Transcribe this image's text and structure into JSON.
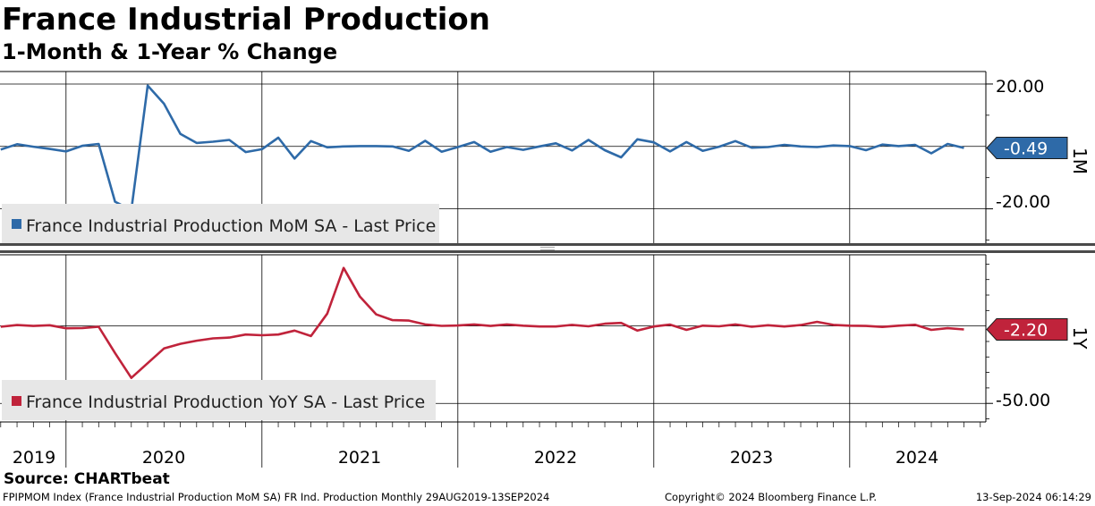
{
  "header": {
    "title": "France Industrial Production",
    "subtitle": "1-Month & 1-Year % Change"
  },
  "source": "Source: CHARTbeat",
  "footer": {
    "left": "FPIPMOM Index (France Industrial Production MoM SA) FR Ind. Production  Monthly 29AUG2019-13SEP2024",
    "center": "Copyright© 2024 Bloomberg Finance L.P.",
    "right": "13-Sep-2024 06:14:29"
  },
  "chart_data": [
    {
      "type": "line",
      "panel_label": "1M",
      "legend": "France Industrial Production MoM SA - Last Price",
      "legend_placement": "bottom-left",
      "color": "#2e6aa8",
      "last_value_label": "-0.49",
      "last_value": -0.49,
      "y_ticks": [
        20.0,
        -20.0
      ],
      "y_tick_labels": [
        "20.00",
        "-20.00"
      ],
      "ylim": [
        -31,
        24
      ],
      "grid": true,
      "x_start": "2019-09",
      "values": [
        -1.0,
        0.7,
        -0.1,
        -0.8,
        -1.6,
        0.2,
        0.8,
        -17.7,
        -20.4,
        19.5,
        13.7,
        4.0,
        1.1,
        1.5,
        2.1,
        -1.8,
        -0.9,
        2.8,
        -3.9,
        1.7,
        -0.3,
        0.0,
        0.1,
        0.1,
        0.0,
        -1.4,
        1.8,
        -1.7,
        -0.2,
        1.4,
        -1.7,
        -0.2,
        -1.1,
        0.0,
        1.0,
        -1.3,
        2.1,
        -1.2,
        -3.5,
        2.3,
        1.3,
        -1.6,
        1.4,
        -1.4,
        -0.1,
        1.7,
        -0.4,
        -0.2,
        0.5,
        0.0,
        -0.2,
        0.3,
        0.1,
        -1.2,
        0.6,
        0.1,
        0.5,
        -2.2,
        0.8,
        -0.49
      ]
    },
    {
      "type": "line",
      "panel_label": "1Y",
      "legend": "France Industrial Production YoY SA - Last Price",
      "legend_placement": "bottom-left",
      "color": "#c0233b",
      "last_value_label": "-2.20",
      "last_value": -2.2,
      "y_ticks": [
        -50.0
      ],
      "y_tick_labels": [
        "-50.00"
      ],
      "ylim": [
        -62,
        46
      ],
      "grid": true,
      "x_start": "2019-09",
      "values": [
        -0.5,
        0.6,
        0.0,
        0.5,
        -1.5,
        -1.3,
        -0.5,
        -17.5,
        -33.5,
        -24.0,
        -14.5,
        -11.5,
        -9.5,
        -8.0,
        -7.5,
        -5.5,
        -6.0,
        -5.5,
        -3.0,
        -6.5,
        8.0,
        37.5,
        19.0,
        7.5,
        3.8,
        3.5,
        1.0,
        0.1,
        0.3,
        1.0,
        0.0,
        1.0,
        0.2,
        -0.3,
        -0.3,
        0.7,
        -0.2,
        1.5,
        2.0,
        -3.0,
        -0.3,
        0.9,
        -2.5,
        0.2,
        -0.2,
        1.0,
        -0.5,
        0.5,
        -0.3,
        0.6,
        2.7,
        0.7,
        0.2,
        0.0,
        -0.6,
        0.2,
        0.8,
        -2.5,
        -1.4,
        -2.2
      ]
    }
  ],
  "x_axis": {
    "year_labels": [
      "2019",
      "2020",
      "2021",
      "2022",
      "2023",
      "2024"
    ]
  }
}
